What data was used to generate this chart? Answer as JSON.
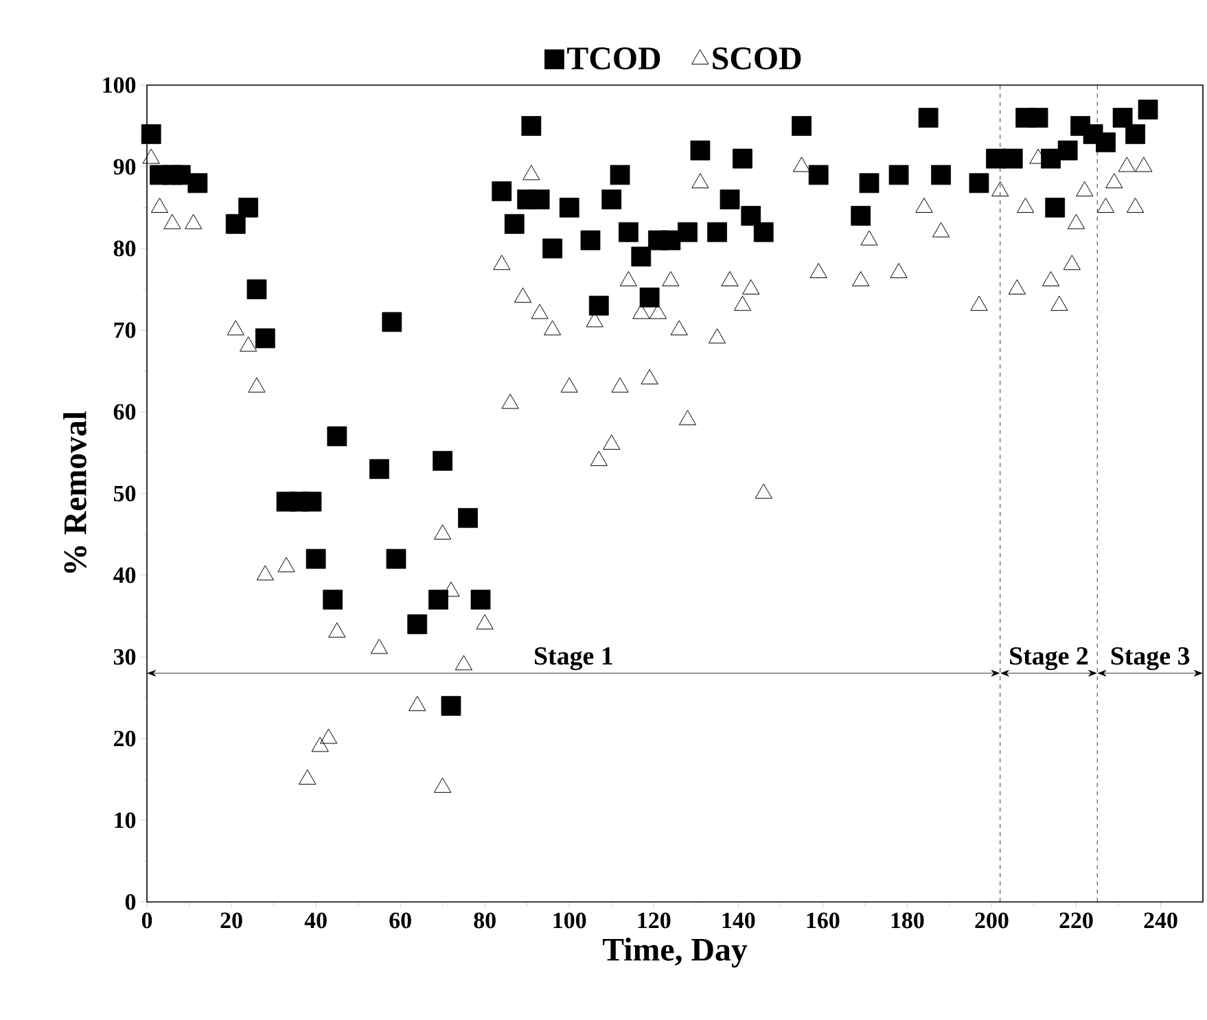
{
  "chart_data": {
    "type": "scatter",
    "xlabel": "Time, Day",
    "ylabel": "% Removal",
    "xlim": [
      0,
      250
    ],
    "ylim": [
      0,
      100
    ],
    "xticks": [
      0,
      20,
      40,
      60,
      80,
      100,
      120,
      140,
      160,
      180,
      200,
      220,
      240
    ],
    "yticks": [
      0,
      10,
      20,
      30,
      40,
      50,
      60,
      70,
      80,
      90,
      100
    ],
    "grid": false,
    "legend": "top",
    "series": [
      {
        "name": "TCOD",
        "color": "#000000",
        "marker": "square",
        "x": [
          1,
          3,
          6,
          8,
          12,
          21,
          24,
          26,
          28,
          33,
          36,
          39,
          40,
          44,
          45,
          55,
          58,
          59,
          64,
          69,
          70,
          72,
          76,
          79,
          84,
          87,
          90,
          91,
          93,
          96,
          100,
          105,
          107,
          110,
          112,
          114,
          117,
          119,
          121,
          124,
          128,
          131,
          135,
          138,
          141,
          143,
          146,
          155,
          159,
          169,
          171,
          178,
          185,
          188,
          197,
          201,
          205,
          208,
          211,
          214,
          215,
          218,
          221,
          224,
          227,
          231,
          234,
          237
        ],
        "values": [
          94,
          89,
          89,
          89,
          88,
          83,
          85,
          75,
          69,
          49,
          49,
          49,
          42,
          37,
          57,
          53,
          71,
          42,
          34,
          37,
          54,
          24,
          47,
          37,
          87,
          83,
          86,
          95,
          86,
          80,
          85,
          81,
          73,
          86,
          89,
          82,
          79,
          74,
          81,
          81,
          82,
          92,
          82,
          86,
          91,
          84,
          82,
          95,
          89,
          84,
          88,
          89,
          96,
          89,
          88,
          91,
          91,
          96,
          96,
          91,
          85,
          92,
          95,
          94,
          93,
          96,
          94,
          97
        ]
      },
      {
        "name": "SCOD",
        "color": "#000000",
        "marker": "triangle",
        "x": [
          1,
          3,
          6,
          11,
          21,
          24,
          26,
          28,
          33,
          38,
          41,
          43,
          45,
          55,
          64,
          70,
          70,
          72,
          75,
          80,
          84,
          86,
          89,
          91,
          93,
          96,
          100,
          106,
          107,
          110,
          112,
          114,
          117,
          119,
          121,
          124,
          126,
          128,
          131,
          135,
          138,
          141,
          143,
          146,
          155,
          159,
          169,
          171,
          178,
          184,
          188,
          197,
          202,
          206,
          208,
          211,
          214,
          216,
          219,
          220,
          222,
          227,
          229,
          232,
          234,
          236
        ],
        "values": [
          91,
          85,
          83,
          83,
          70,
          68,
          63,
          40,
          41,
          15,
          19,
          20,
          33,
          31,
          24,
          14,
          45,
          38,
          29,
          34,
          78,
          61,
          74,
          89,
          72,
          70,
          63,
          71,
          54,
          56,
          63,
          76,
          72,
          64,
          72,
          76,
          70,
          59,
          88,
          69,
          76,
          73,
          75,
          50,
          90,
          77,
          76,
          81,
          77,
          85,
          82,
          73,
          87,
          75,
          85,
          91,
          76,
          73,
          78,
          83,
          87,
          85,
          88,
          90,
          85,
          90
        ]
      }
    ],
    "ref_lines": [
      {
        "axis": "x",
        "value": 202,
        "line_style": "dashed"
      },
      {
        "axis": "x",
        "value": 225,
        "line_style": "dashed"
      },
      {
        "axis": "y",
        "value": 28,
        "line_style": "solid"
      }
    ],
    "annotations": [
      {
        "text": "Stage 1",
        "x": 101,
        "y": 28
      },
      {
        "text": "Stage 2",
        "x": 213.5,
        "y": 28
      },
      {
        "text": "Stage 3",
        "x": 237.5,
        "y": 28
      }
    ]
  }
}
